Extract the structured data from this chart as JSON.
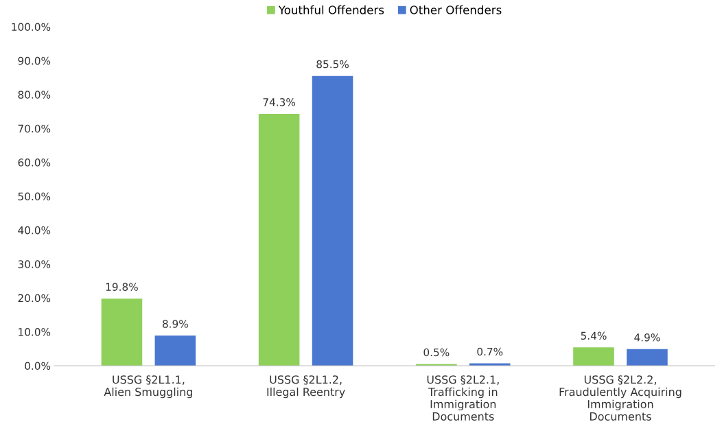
{
  "chart_data": {
    "type": "bar",
    "categories": [
      "USSG §2L1.1,\nAlien Smuggling",
      "USSG §2L1.2,\nIllegal Reentry",
      "USSG §2L2.1,\nTrafficking in\nImmigration\nDocuments",
      "USSG §2L2.2,\nFraudulently Acquiring\nImmigration\nDocuments"
    ],
    "series": [
      {
        "name": "Youthful Offenders",
        "color": "#8fd05a",
        "values": [
          19.8,
          74.3,
          0.5,
          5.4
        ]
      },
      {
        "name": "Other Offenders",
        "color": "#4a78d0",
        "values": [
          8.9,
          85.5,
          0.7,
          4.9
        ]
      }
    ],
    "ylim": [
      0,
      100
    ],
    "yticks": [
      {
        "value": 0,
        "label": "0.0%"
      },
      {
        "value": 10,
        "label": "10.0%"
      },
      {
        "value": 20,
        "label": "20.0%"
      },
      {
        "value": 30,
        "label": "30.0%"
      },
      {
        "value": 40,
        "label": "40.0%"
      },
      {
        "value": 50,
        "label": "50.0%"
      },
      {
        "value": 60,
        "label": "60.0%"
      },
      {
        "value": 70,
        "label": "70.0%"
      },
      {
        "value": 80,
        "label": "80.0%"
      },
      {
        "value": 90,
        "label": "90.0%"
      },
      {
        "value": 100,
        "label": "100.0%"
      }
    ],
    "value_labels": [
      [
        "19.8%",
        "74.3%",
        "0.5%",
        "5.4%"
      ],
      [
        "8.9%",
        "85.5%",
        "0.7%",
        "4.9%"
      ]
    ],
    "legend": "top",
    "grid": false
  }
}
